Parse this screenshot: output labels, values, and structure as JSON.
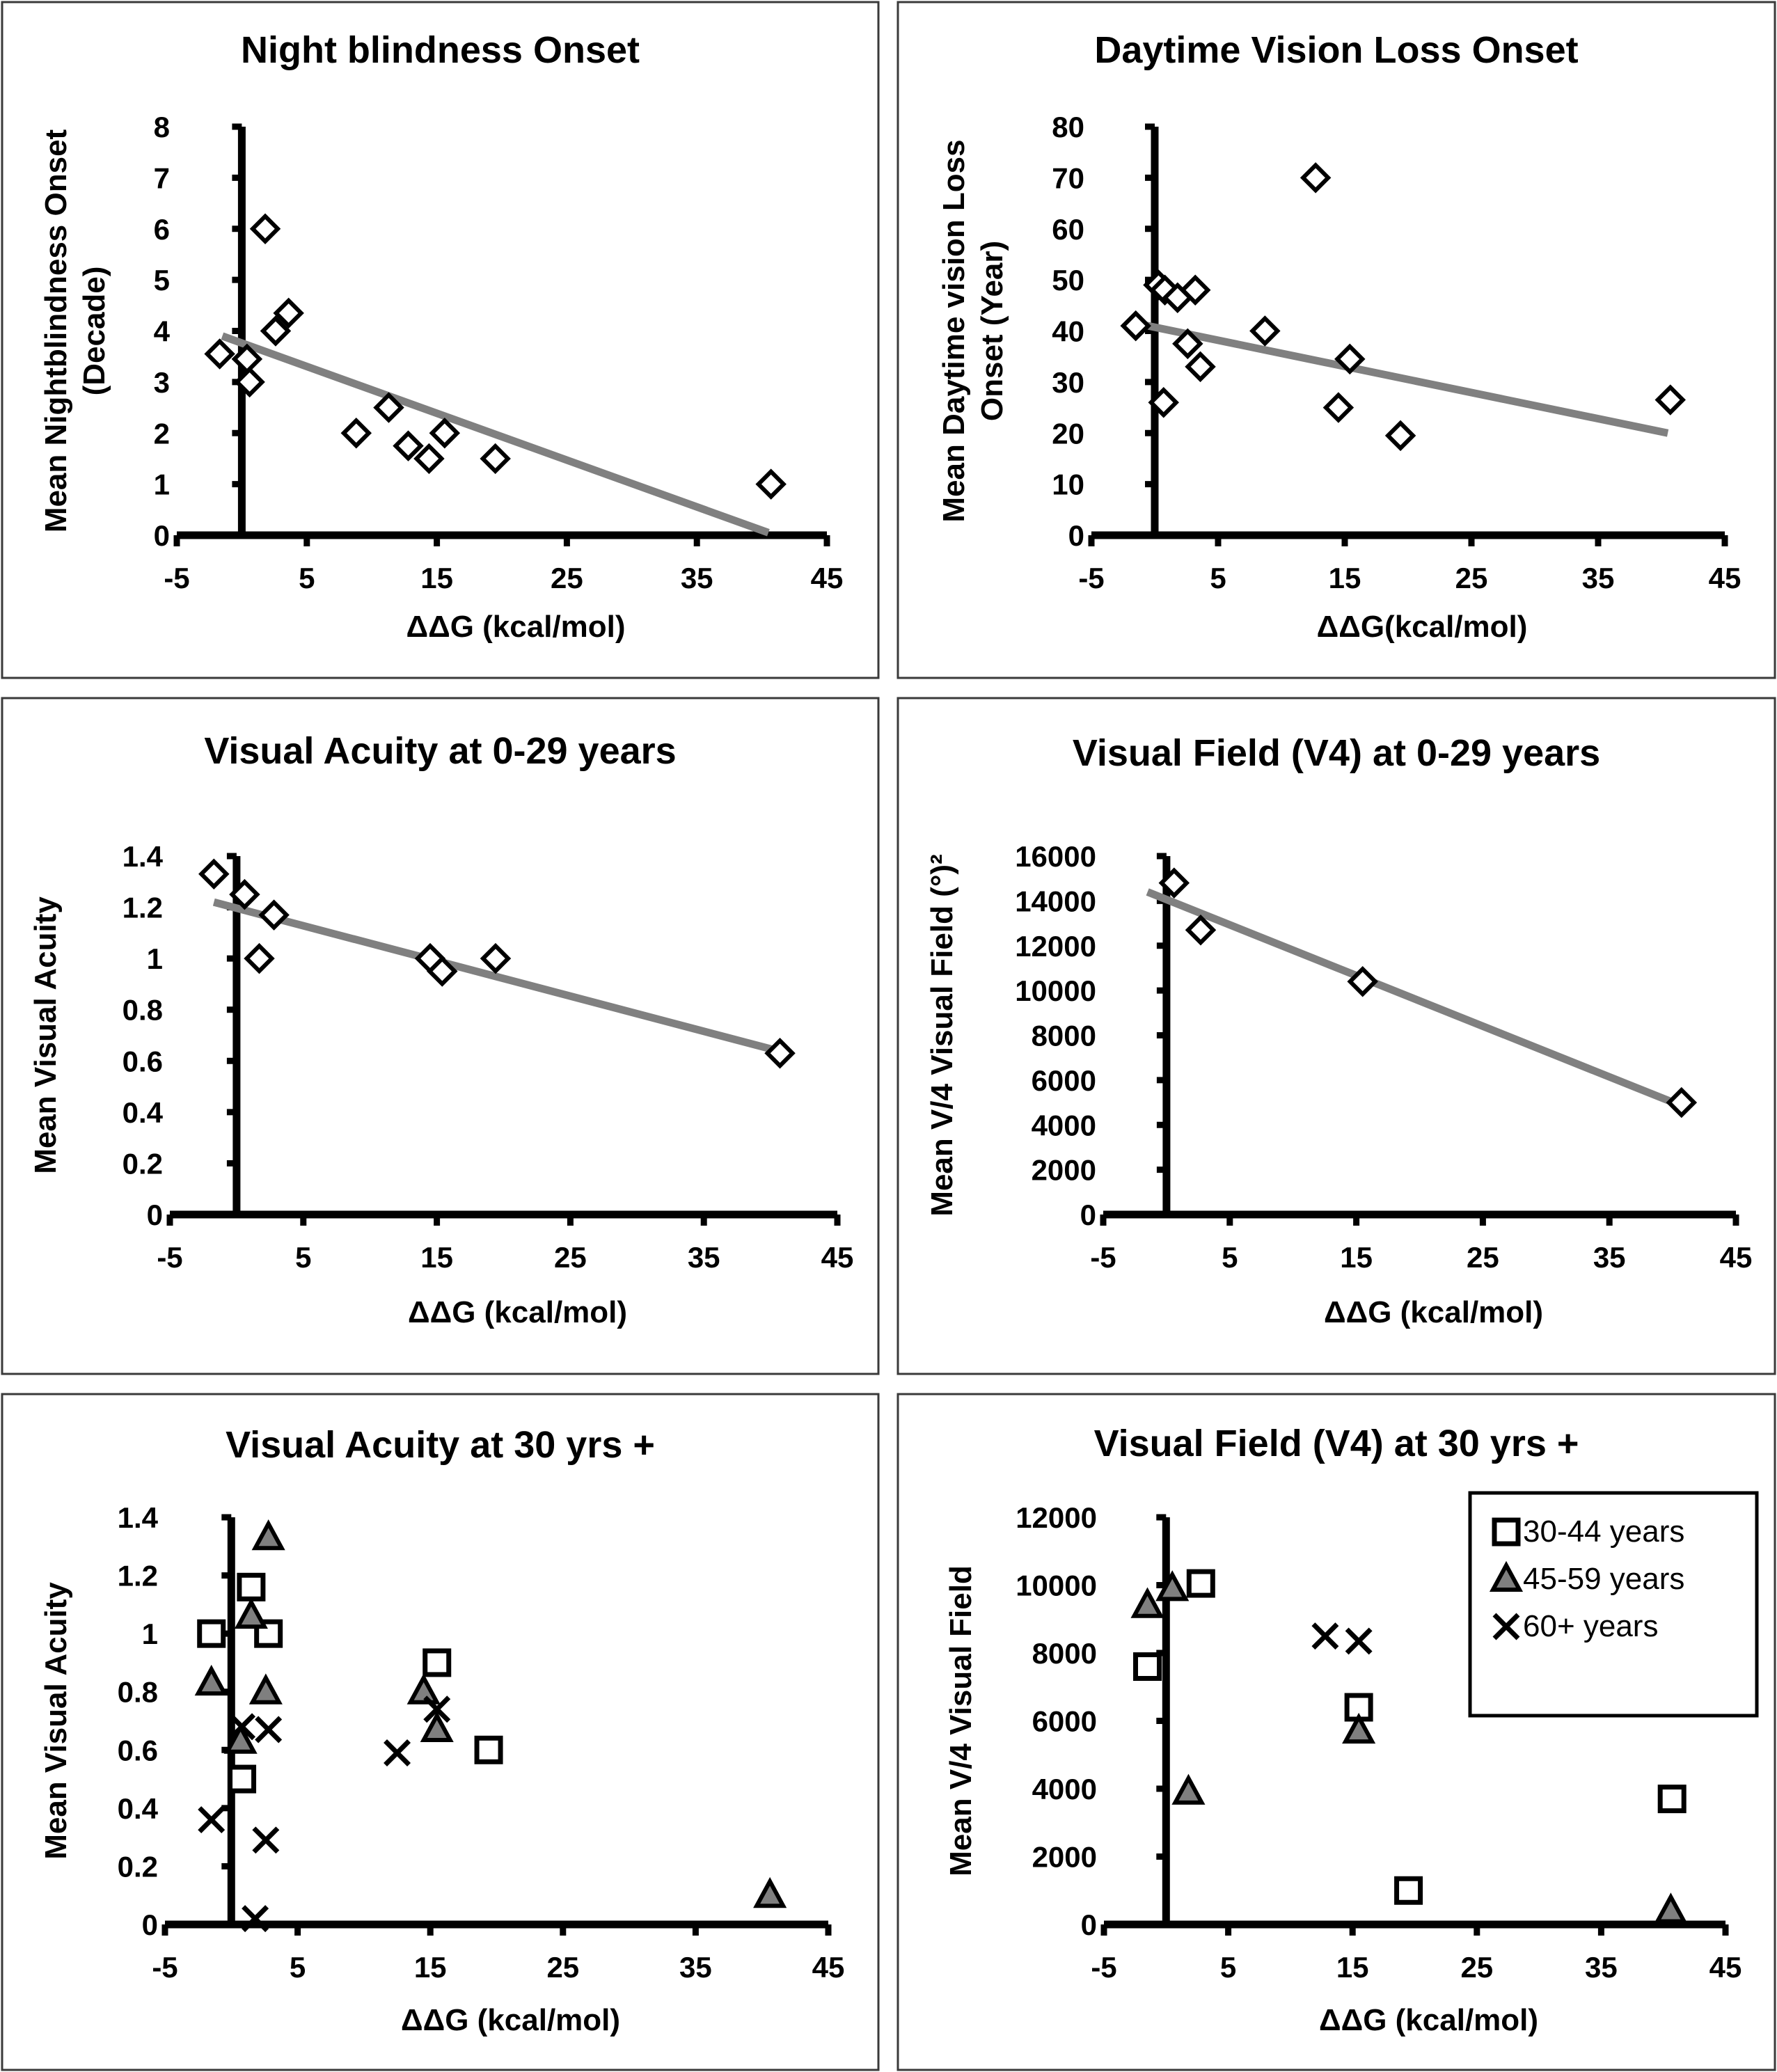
{
  "legend": {
    "entries": [
      {
        "marker": "square",
        "label": "30-44 years"
      },
      {
        "marker": "triangle",
        "label": "45-59 years"
      },
      {
        "marker": "cross",
        "label": "60+ years"
      }
    ]
  },
  "colors": {
    "trendline": "#808080",
    "triangle_fill": "#7f7f7f",
    "marker_stroke": "#000000",
    "frame": "#3a3a3a"
  },
  "chart_data": [
    {
      "id": "night-blindness",
      "type": "scatter",
      "title": "Night blindness Onset",
      "xlabel": "ΔΔG (kcal/mol)",
      "ylabel": [
        "Mean Nightblindness Onset",
        "(Decade)"
      ],
      "xlim": [
        -5,
        45
      ],
      "ylim": [
        0,
        8
      ],
      "xticks": [
        "-5",
        "5",
        "15",
        "25",
        "35",
        "45"
      ],
      "xtick_values": [
        -5,
        5,
        15,
        25,
        35,
        45
      ],
      "yticks": [
        "0",
        "1",
        "2",
        "3",
        "4",
        "5",
        "6",
        "7",
        "8"
      ],
      "ytick_values": [
        0,
        1,
        2,
        3,
        4,
        5,
        6,
        7,
        8
      ],
      "minor_xtick_values": [],
      "grid": false,
      "series": [
        {
          "name": "all",
          "marker": "diamond",
          "x": [
            -1.7,
            0.4,
            0.6,
            1.8,
            2.6,
            3.6,
            8.8,
            11.3,
            12.8,
            14.4,
            15.6,
            19.5,
            40.7
          ],
          "y": [
            3.55,
            3.45,
            3.0,
            6.0,
            4.0,
            4.35,
            2.0,
            2.5,
            1.75,
            1.5,
            2.0,
            1.5,
            1.0
          ]
        }
      ],
      "trendline": {
        "x": [
          -1.5,
          40.5
        ],
        "y": [
          3.9,
          0.05
        ]
      }
    },
    {
      "id": "daytime-vision-loss",
      "type": "scatter",
      "title": "Daytime Vision Loss Onset",
      "xlabel": "ΔΔG(kcal/mol)",
      "ylabel": [
        "Mean Daytime vision Loss",
        "Onset (Year)"
      ],
      "xlim": [
        -5,
        45
      ],
      "ylim": [
        0,
        80
      ],
      "xticks": [
        "-5",
        "5",
        "15",
        "25",
        "35",
        "45"
      ],
      "xtick_values": [
        -5,
        5,
        15,
        25,
        35,
        45
      ],
      "yticks": [
        "0",
        "10",
        "20",
        "30",
        "40",
        "50",
        "60",
        "70",
        "80"
      ],
      "ytick_values": [
        0,
        10,
        20,
        30,
        40,
        50,
        60,
        70,
        80
      ],
      "grid": false,
      "series": [
        {
          "name": "all",
          "marker": "diamond",
          "x": [
            -1.5,
            0.3,
            0.8,
            0.7,
            1.8,
            3.2,
            2.6,
            3.6,
            8.7,
            12.7,
            15.4,
            14.5,
            19.4,
            40.7
          ],
          "y": [
            41,
            49,
            48,
            26,
            46.5,
            48,
            37.5,
            33,
            40,
            70,
            34.5,
            25,
            19.5,
            26.5
          ]
        }
      ],
      "trendline": {
        "x": [
          -1.5,
          40.5
        ],
        "y": [
          41.5,
          20
        ]
      }
    },
    {
      "id": "visual-acuity-0-29",
      "type": "scatter",
      "title": "Visual Acuity at 0-29 years",
      "xlabel": "ΔΔG (kcal/mol)",
      "ylabel": [
        "Mean Visual Acuity"
      ],
      "xlim": [
        -5,
        45
      ],
      "ylim": [
        0,
        1.4
      ],
      "xticks": [
        "-5",
        "5",
        "15",
        "25",
        "35",
        "45"
      ],
      "xtick_values": [
        -5,
        5,
        15,
        25,
        35,
        45
      ],
      "yticks": [
        "0",
        "0.2",
        "0.4",
        "0.6",
        "0.8",
        "1",
        "1.2",
        "1.4"
      ],
      "ytick_values": [
        0,
        0.2,
        0.4,
        0.6,
        0.8,
        1.0,
        1.2,
        1.4
      ],
      "grid": false,
      "series": [
        {
          "name": "all",
          "marker": "diamond",
          "x": [
            -1.7,
            0.6,
            1.7,
            2.8,
            14.5,
            15.4,
            19.4,
            40.7
          ],
          "y": [
            1.33,
            1.25,
            1.0,
            1.17,
            1.0,
            0.95,
            1.0,
            0.63
          ]
        }
      ],
      "trendline": {
        "x": [
          -1.7,
          40.5
        ],
        "y": [
          1.22,
          0.64
        ]
      }
    },
    {
      "id": "visual-field-0-29",
      "type": "scatter",
      "title": "Visual Field (V4) at 0-29 years",
      "xlabel": "ΔΔG (kcal/mol)",
      "ylabel": [
        "Mean V/4 Visual Field (°)²"
      ],
      "xlim": [
        -5,
        45
      ],
      "ylim": [
        0,
        16000
      ],
      "xticks": [
        "-5",
        "5",
        "15",
        "25",
        "35",
        "45"
      ],
      "xtick_values": [
        -5,
        5,
        15,
        25,
        35,
        45
      ],
      "yticks": [
        "0",
        "2000",
        "4000",
        "6000",
        "8000",
        "10000",
        "12000",
        "14000",
        "16000"
      ],
      "ytick_values": [
        0,
        2000,
        4000,
        6000,
        8000,
        10000,
        12000,
        14000,
        16000
      ],
      "grid": false,
      "series": [
        {
          "name": "all",
          "marker": "diamond",
          "x": [
            0.6,
            2.7,
            15.5,
            40.7
          ],
          "y": [
            14800,
            12700,
            10400,
            5000
          ]
        }
      ],
      "trendline": {
        "x": [
          -1.5,
          40.5
        ],
        "y": [
          14400,
          4900
        ]
      }
    },
    {
      "id": "visual-acuity-30-plus",
      "type": "scatter",
      "title": "Visual Acuity at 30 yrs +",
      "xlabel": "ΔΔG (kcal/mol)",
      "ylabel": [
        "Mean Visual Acuity"
      ],
      "xlim": [
        -5,
        45
      ],
      "ylim": [
        0,
        1.4
      ],
      "xticks": [
        "-5",
        "5",
        "15",
        "25",
        "35",
        "45"
      ],
      "xtick_values": [
        -5,
        5,
        15,
        25,
        35,
        45
      ],
      "yticks": [
        "0",
        "0.2",
        "0.4",
        "0.6",
        "0.8",
        "1",
        "1.2",
        "1.4"
      ],
      "ytick_values": [
        0,
        0.2,
        0.4,
        0.6,
        0.8,
        1.0,
        1.2,
        1.4
      ],
      "grid": false,
      "series": [
        {
          "name": "30-44 years",
          "marker": "square",
          "x": [
            -1.5,
            1.5,
            2.8,
            0.8,
            15.5,
            19.4
          ],
          "y": [
            1.0,
            1.16,
            1.0,
            0.5,
            0.9,
            0.6
          ]
        },
        {
          "name": "45-59 years",
          "marker": "triangle",
          "x": [
            -1.5,
            1.5,
            2.8,
            2.6,
            0.7,
            14.5,
            15.5,
            40.6
          ],
          "y": [
            0.83,
            1.06,
            1.33,
            0.8,
            0.63,
            0.8,
            0.67,
            0.1
          ]
        },
        {
          "name": "60+ years",
          "marker": "cross",
          "x": [
            -1.5,
            0.8,
            2.8,
            2.6,
            1.8,
            12.5,
            15.5
          ],
          "y": [
            0.36,
            0.68,
            0.67,
            0.29,
            0.02,
            0.59,
            0.74
          ]
        }
      ]
    },
    {
      "id": "visual-field-30-plus",
      "type": "scatter",
      "title": "Visual Field (V4) at 30 yrs +",
      "xlabel": "ΔΔG (kcal/mol)",
      "ylabel": [
        "Mean V/4 Visual Field"
      ],
      "xlim": [
        -5,
        45
      ],
      "ylim": [
        0,
        12000
      ],
      "xticks": [
        "-5",
        "5",
        "15",
        "25",
        "35",
        "45"
      ],
      "xtick_values": [
        -5,
        5,
        15,
        25,
        35,
        45
      ],
      "yticks": [
        "0",
        "2000",
        "4000",
        "6000",
        "8000",
        "10000",
        "12000"
      ],
      "ytick_values": [
        0,
        2000,
        4000,
        6000,
        8000,
        10000,
        12000
      ],
      "grid": false,
      "legend_position": "top-right",
      "series": [
        {
          "name": "30-44 years",
          "marker": "square",
          "x": [
            -1.5,
            2.8,
            15.5,
            19.5,
            40.7
          ],
          "y": [
            7600,
            10050,
            6400,
            1000,
            3700
          ]
        },
        {
          "name": "45-59 years",
          "marker": "triangle",
          "x": [
            -1.5,
            0.5,
            1.8,
            15.5,
            40.6
          ],
          "y": [
            9400,
            9900,
            3900,
            5700,
            400
          ]
        },
        {
          "name": "60+ years",
          "marker": "cross",
          "x": [
            12.8,
            15.5
          ],
          "y": [
            8500,
            8350
          ]
        }
      ]
    }
  ]
}
